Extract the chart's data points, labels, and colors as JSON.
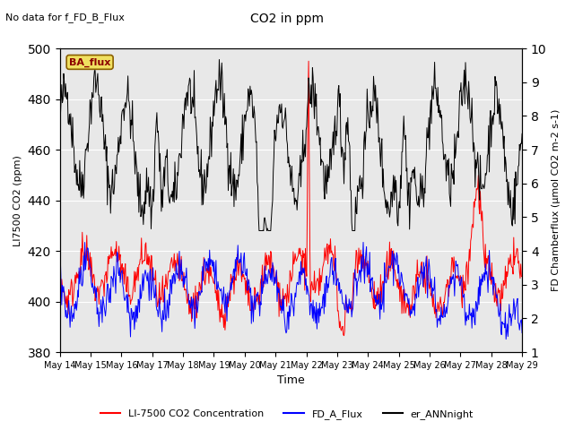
{
  "title": "CO2 in ppm",
  "top_left_text": "No data for f_FD_B_Flux",
  "annotation_text": "BA_flux",
  "xlabel": "Time",
  "ylabel_left": "LI7500 CO2 (ppm)",
  "ylabel_right": "FD Chamberflux (μmol CO2 m-2 s-1)",
  "ylim_left": [
    380,
    500
  ],
  "ylim_right": [
    1.0,
    10.0
  ],
  "yticks_left": [
    380,
    400,
    420,
    440,
    460,
    480,
    500
  ],
  "yticks_right": [
    1.0,
    2.0,
    3.0,
    4.0,
    5.0,
    6.0,
    7.0,
    8.0,
    9.0,
    10.0
  ],
  "xtick_labels": [
    "May 14",
    "May 15",
    "May 16",
    "May 17",
    "May 18",
    "May 19",
    "May 20",
    "May 21",
    "May 22",
    "May 23",
    "May 24",
    "May 25",
    "May 26",
    "May 27",
    "May 28",
    "May 29"
  ],
  "bg_color": "#dcdcdc",
  "plot_bg": "#e8e8e8",
  "legend_entries": [
    "LI-7500 CO2 Concentration",
    "FD_A_Flux",
    "er_ANNnight"
  ],
  "legend_colors": [
    "red",
    "blue",
    "black"
  ],
  "line_colors": [
    "red",
    "blue",
    "black"
  ],
  "n_points": 720,
  "seed": 42
}
